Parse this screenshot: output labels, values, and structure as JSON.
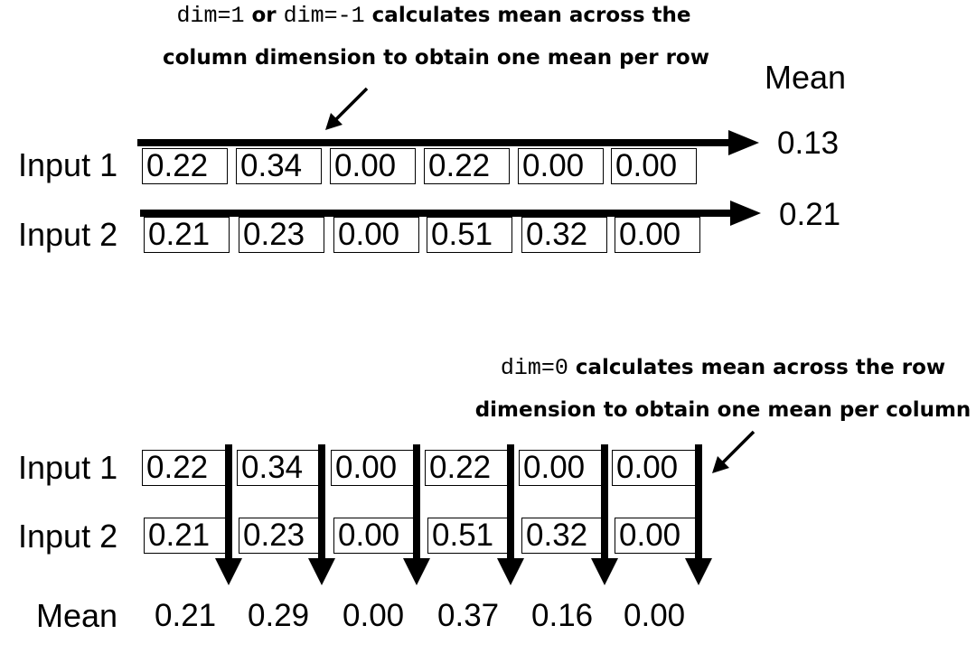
{
  "top_section": {
    "caption_line1_code_a": "dim=1",
    "caption_line1_or": " or ",
    "caption_line1_code_b": "dim=-1",
    "caption_line1_rest": " calculates mean across the",
    "caption_line2": "column dimension to obtain one mean per row",
    "mean_header": "Mean",
    "rows": [
      {
        "label": "Input 1",
        "cells": [
          "0.22",
          "0.34",
          "0.00",
          "0.22",
          "0.00",
          "0.00"
        ],
        "mean": "0.13"
      },
      {
        "label": "Input 2",
        "cells": [
          "0.21",
          "0.23",
          "0.00",
          "0.51",
          "0.32",
          "0.00"
        ],
        "mean": "0.21"
      }
    ]
  },
  "bottom_section": {
    "caption_line1_code": "dim=0",
    "caption_line1_rest": " calculates mean across the row",
    "caption_line2": "dimension to obtain one mean per column",
    "rows": [
      {
        "label": "Input 1",
        "cells": [
          "0.22",
          "0.34",
          "0.00",
          "0.22",
          "0.00",
          "0.00"
        ]
      },
      {
        "label": "Input 2",
        "cells": [
          "0.21",
          "0.23",
          "0.00",
          "0.51",
          "0.32",
          "0.00"
        ]
      }
    ],
    "mean_label": "Mean",
    "column_means": [
      "0.21",
      "0.29",
      "0.00",
      "0.37",
      "0.16",
      "0.00"
    ]
  }
}
